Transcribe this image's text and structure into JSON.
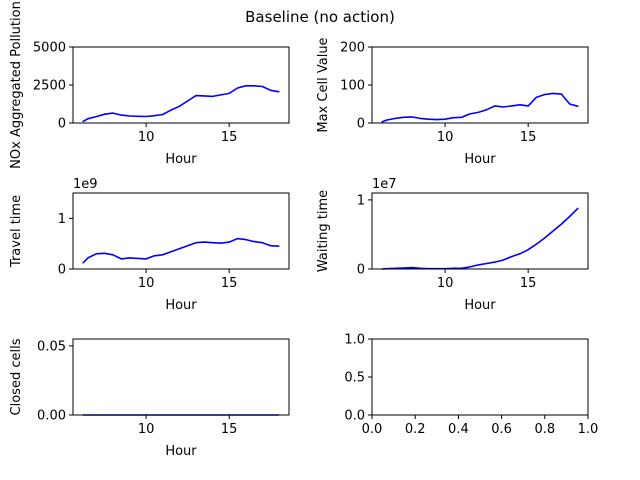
{
  "figure": {
    "title": "Baseline (no action)"
  },
  "colors": {
    "series": "#0000ff",
    "axes": "#000000",
    "background": "#ffffff"
  },
  "chart_data": [
    {
      "type": "line",
      "title": "",
      "xlabel": "Hour",
      "ylabel": "NOx Aggregated Pollution",
      "xlim": [
        5.6,
        18.6
      ],
      "ylim": [
        0,
        5000
      ],
      "xticks": [
        10,
        15
      ],
      "xtick_labels": [
        "10",
        "15"
      ],
      "yticks": [
        0,
        2500,
        5000
      ],
      "ytick_labels": [
        "0",
        "2500",
        "5000"
      ],
      "offset_text": "",
      "grid": false,
      "series": [
        {
          "x": [
            6.2,
            6.5,
            7.0,
            7.5,
            8.0,
            8.5,
            9.0,
            9.5,
            10.0,
            10.5,
            11.0,
            11.5,
            12.0,
            12.5,
            13.0,
            13.5,
            14.0,
            14.5,
            15.0,
            15.5,
            16.0,
            16.5,
            17.0,
            17.5,
            18.0
          ],
          "y": [
            100,
            280,
            420,
            580,
            650,
            520,
            460,
            440,
            430,
            480,
            560,
            850,
            1100,
            1450,
            1800,
            1780,
            1750,
            1850,
            1950,
            2300,
            2450,
            2450,
            2400,
            2150,
            2050
          ]
        }
      ]
    },
    {
      "type": "line",
      "title": "",
      "xlabel": "Hour",
      "ylabel": "Max Cell Value",
      "xlim": [
        5.6,
        18.6
      ],
      "ylim": [
        0,
        200
      ],
      "xticks": [
        10,
        15
      ],
      "xtick_labels": [
        "10",
        "15"
      ],
      "yticks": [
        0,
        100,
        200
      ],
      "ytick_labels": [
        "0",
        "100",
        "200"
      ],
      "offset_text": "",
      "grid": false,
      "series": [
        {
          "x": [
            6.2,
            6.5,
            7.0,
            7.5,
            8.0,
            8.5,
            9.0,
            9.5,
            10.0,
            10.5,
            11.0,
            11.5,
            12.0,
            12.5,
            13.0,
            13.5,
            14.0,
            14.5,
            15.0,
            15.5,
            16.0,
            16.5,
            17.0,
            17.5,
            18.0
          ],
          "y": [
            3,
            8,
            12,
            15,
            16,
            12,
            10,
            9,
            10,
            14,
            15,
            24,
            28,
            35,
            45,
            42,
            45,
            48,
            45,
            68,
            75,
            78,
            76,
            50,
            44
          ]
        }
      ]
    },
    {
      "type": "line",
      "title": "",
      "xlabel": "Hour",
      "ylabel": "Travel time",
      "xlim": [
        5.6,
        18.6
      ],
      "ylim": [
        0,
        1.5
      ],
      "xticks": [
        10,
        15
      ],
      "xtick_labels": [
        "10",
        "15"
      ],
      "yticks": [
        0,
        1
      ],
      "ytick_labels": [
        "0",
        "1"
      ],
      "offset_text": "1e9",
      "grid": false,
      "series": [
        {
          "x": [
            6.2,
            6.5,
            7.0,
            7.5,
            8.0,
            8.5,
            9.0,
            9.5,
            10.0,
            10.5,
            11.0,
            11.5,
            12.0,
            12.5,
            13.0,
            13.5,
            14.0,
            14.5,
            15.0,
            15.5,
            16.0,
            16.5,
            17.0,
            17.5,
            18.0
          ],
          "y": [
            0.12,
            0.22,
            0.3,
            0.31,
            0.28,
            0.2,
            0.22,
            0.21,
            0.2,
            0.26,
            0.28,
            0.34,
            0.4,
            0.46,
            0.52,
            0.53,
            0.52,
            0.51,
            0.53,
            0.6,
            0.58,
            0.54,
            0.52,
            0.46,
            0.45
          ]
        }
      ]
    },
    {
      "type": "line",
      "title": "",
      "xlabel": "Hour",
      "ylabel": "Waiting time",
      "xlim": [
        5.6,
        18.6
      ],
      "ylim": [
        0,
        1.1
      ],
      "xticks": [
        10,
        15
      ],
      "xtick_labels": [
        "10",
        "15"
      ],
      "yticks": [
        0,
        1
      ],
      "ytick_labels": [
        "0",
        "1"
      ],
      "offset_text": "1e7",
      "grid": false,
      "series": [
        {
          "x": [
            6.2,
            6.5,
            7.0,
            7.5,
            8.0,
            8.5,
            9.0,
            9.5,
            10.0,
            10.5,
            11.0,
            11.5,
            12.0,
            12.5,
            13.0,
            13.5,
            14.0,
            14.5,
            15.0,
            15.5,
            16.0,
            16.5,
            17.0,
            17.5,
            18.0
          ],
          "y": [
            0.0,
            0.005,
            0.01,
            0.015,
            0.02,
            0.01,
            0.005,
            0.005,
            0.005,
            0.01,
            0.01,
            0.03,
            0.06,
            0.08,
            0.1,
            0.13,
            0.18,
            0.22,
            0.28,
            0.36,
            0.45,
            0.55,
            0.65,
            0.76,
            0.88
          ]
        }
      ]
    },
    {
      "type": "line",
      "title": "",
      "xlabel": "Hour",
      "ylabel": "Closed cells",
      "xlim": [
        5.6,
        18.6
      ],
      "ylim": [
        0,
        0.055
      ],
      "xticks": [
        10,
        15
      ],
      "xtick_labels": [
        "10",
        "15"
      ],
      "yticks": [
        0,
        0.05
      ],
      "ytick_labels": [
        "0.00",
        "0.05"
      ],
      "offset_text": "",
      "grid": false,
      "series": [
        {
          "x": [
            6.2,
            18.0
          ],
          "y": [
            0,
            0
          ]
        }
      ]
    },
    {
      "type": "line",
      "title": "",
      "xlabel": "",
      "ylabel": "",
      "xlim": [
        0,
        1
      ],
      "ylim": [
        0,
        1
      ],
      "xticks": [
        0,
        0.2,
        0.4,
        0.6,
        0.8,
        1.0
      ],
      "xtick_labels": [
        "0.0",
        "0.2",
        "0.4",
        "0.6",
        "0.8",
        "1.0"
      ],
      "yticks": [
        0,
        0.5,
        1.0
      ],
      "ytick_labels": [
        "0.0",
        "0.5",
        "1.0"
      ],
      "offset_text": "",
      "grid": false,
      "series": []
    }
  ]
}
